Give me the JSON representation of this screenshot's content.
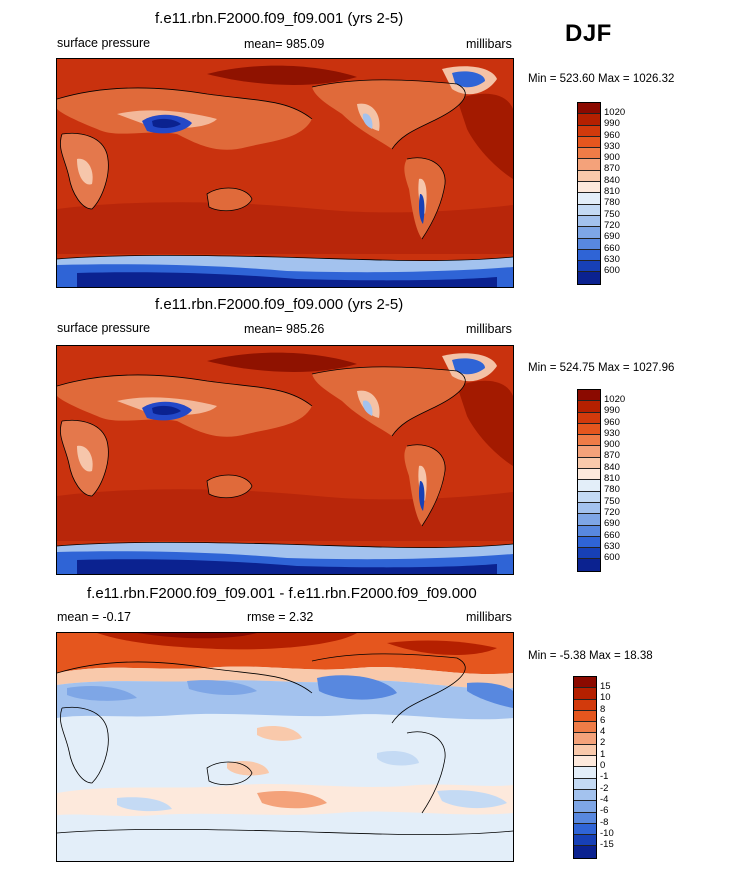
{
  "season": "DJF",
  "panels": [
    {
      "title": "f.e11.rbn.F2000.f09_f09.001 (yrs 2-5)",
      "left_label": "surface pressure",
      "center_label": "mean= 985.09",
      "right_label": "millibars",
      "minmax": "Min = 523.60 Max = 1026.32",
      "colorbar": {
        "labels": [
          "1020",
          "990",
          "960",
          "930",
          "900",
          "870",
          "840",
          "810",
          "780",
          "750",
          "720",
          "690",
          "660",
          "630",
          "600"
        ],
        "colors": [
          "#8b0a00",
          "#b52000",
          "#d23a0c",
          "#e5561e",
          "#ef7c47",
          "#f4a27a",
          "#f9c9ab",
          "#fde9dc",
          "#e3eef9",
          "#c4daf4",
          "#a3c2ee",
          "#7ea6e6",
          "#5888df",
          "#2f64d6",
          "#1740b6",
          "#0b2290"
        ]
      }
    },
    {
      "title": "f.e11.rbn.F2000.f09_f09.000 (yrs 2-5)",
      "left_label": "surface pressure",
      "center_label": "mean= 985.26",
      "right_label": "millibars",
      "minmax": "Min = 524.75 Max = 1027.96",
      "colorbar": {
        "labels": [
          "1020",
          "990",
          "960",
          "930",
          "900",
          "870",
          "840",
          "810",
          "780",
          "750",
          "720",
          "690",
          "660",
          "630",
          "600"
        ],
        "colors": [
          "#8b0a00",
          "#b52000",
          "#d23a0c",
          "#e5561e",
          "#ef7c47",
          "#f4a27a",
          "#f9c9ab",
          "#fde9dc",
          "#e3eef9",
          "#c4daf4",
          "#a3c2ee",
          "#7ea6e6",
          "#5888df",
          "#2f64d6",
          "#1740b6",
          "#0b2290"
        ]
      }
    },
    {
      "title": "f.e11.rbn.F2000.f09_f09.001 - f.e11.rbn.F2000.f09_f09.000",
      "left_label": "mean =  -0.17",
      "center_label": "rmse =   2.32",
      "right_label": "millibars",
      "minmax": "Min =  -5.38 Max =  18.38",
      "colorbar": {
        "labels": [
          "15",
          "10",
          "8",
          "6",
          "4",
          "2",
          "1",
          "0",
          "-1",
          "-2",
          "-4",
          "-6",
          "-8",
          "-10",
          "-15"
        ],
        "colors": [
          "#8b0a00",
          "#b52000",
          "#d23a0c",
          "#e5561e",
          "#ef7c47",
          "#f4a27a",
          "#f9c9ab",
          "#fde9dc",
          "#e3eef9",
          "#c4daf4",
          "#a3c2ee",
          "#7ea6e6",
          "#5888df",
          "#2f64d6",
          "#1740b6",
          "#0b2290"
        ]
      }
    }
  ]
}
